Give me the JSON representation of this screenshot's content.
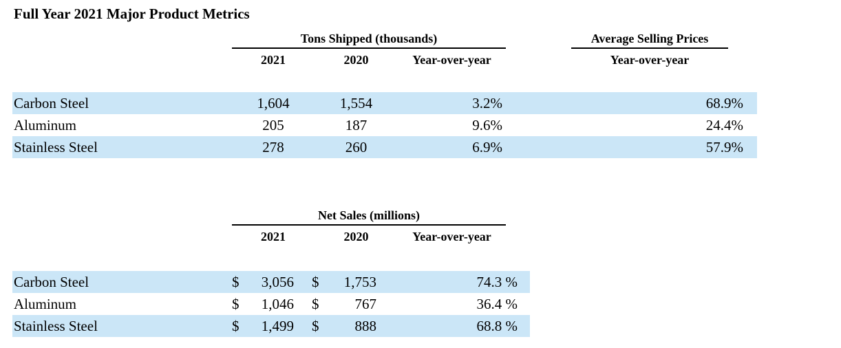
{
  "title": "Full Year 2021 Major Product Metrics",
  "colors": {
    "row_highlight": "#cbe6f7"
  },
  "tons": {
    "group_header": "Tons Shipped (thousands)",
    "col_2021": "2021",
    "col_2020": "2020",
    "col_yoy": "Year-over-year",
    "rows": [
      {
        "label": "Carbon Steel",
        "v2021": "1,604",
        "v2020": "1,554",
        "yoy": "3.2%",
        "asp_yoy": "68.9%"
      },
      {
        "label": "Aluminum",
        "v2021": "205",
        "v2020": "187",
        "yoy": "9.6%",
        "asp_yoy": "24.4%"
      },
      {
        "label": "Stainless Steel",
        "v2021": "278",
        "v2020": "260",
        "yoy": "6.9%",
        "asp_yoy": "57.9%"
      }
    ]
  },
  "asp": {
    "group_header": "Average Selling Prices",
    "col_yoy": "Year-over-year"
  },
  "sales": {
    "group_header": "Net Sales (millions)",
    "col_2021": "2021",
    "col_2020": "2020",
    "col_yoy": "Year-over-year",
    "currency": "$",
    "rows": [
      {
        "label": "Carbon Steel",
        "v2021": "3,056",
        "v2020": "1,753",
        "yoy": "74.3 %"
      },
      {
        "label": "Aluminum",
        "v2021": "1,046",
        "v2020": "767",
        "yoy": "36.4 %"
      },
      {
        "label": "Stainless Steel",
        "v2021": "1,499",
        "v2020": "888",
        "yoy": "68.8 %"
      }
    ]
  }
}
